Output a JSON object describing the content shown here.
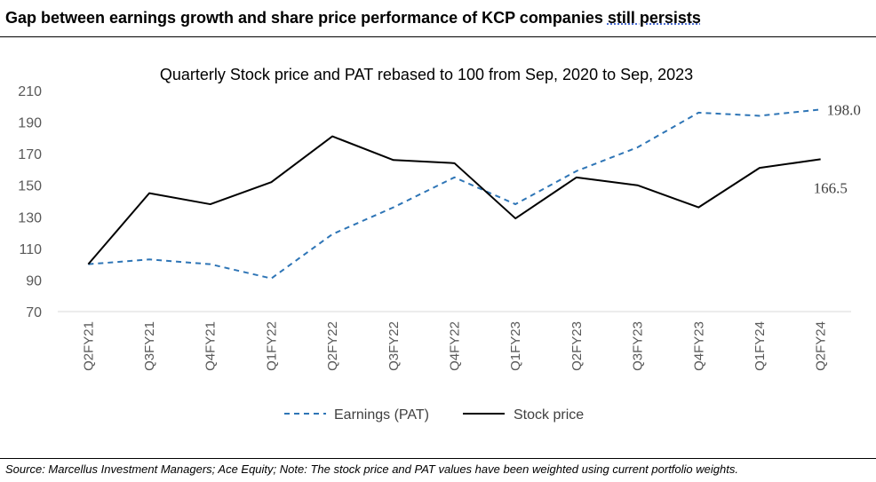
{
  "headline": {
    "main": "Gap between earnings growth and share price performance of KCP companies ",
    "emphasis": "still persists"
  },
  "source": "Source: Marcellus Investment Managers; Ace Equity; Note: The stock price and PAT values have been weighted using current portfolio weights.",
  "chart_data": {
    "type": "line",
    "title": "Quarterly Stock price and PAT rebased to 100 from Sep, 2020 to Sep, 2023",
    "xlabel": "",
    "ylabel": "",
    "categories": [
      "Q2FY21",
      "Q3FY21",
      "Q4FY21",
      "Q1FY22",
      "Q2FY22",
      "Q3FY22",
      "Q4FY22",
      "Q1FY23",
      "Q2FY23",
      "Q3FY23",
      "Q4FY23",
      "Q1FY24",
      "Q2FY24"
    ],
    "ylim": [
      70,
      210
    ],
    "yticks": [
      "70",
      "90",
      "110",
      "130",
      "150",
      "170",
      "190",
      "210"
    ],
    "grid": false,
    "legend_position": "bottom",
    "series": [
      {
        "name": "Earnings (PAT)",
        "values": [
          100,
          103,
          100,
          91,
          119,
          136,
          155,
          138,
          159,
          174,
          196,
          194,
          198.0
        ],
        "color": "#2e75b6",
        "style": "dashed",
        "end_label": "198.0"
      },
      {
        "name": "Stock price",
        "values": [
          100,
          145,
          138,
          152,
          181,
          166,
          164,
          129,
          155,
          150,
          136,
          161,
          166.5
        ],
        "color": "#000000",
        "style": "solid",
        "end_label": "166.5"
      }
    ]
  }
}
